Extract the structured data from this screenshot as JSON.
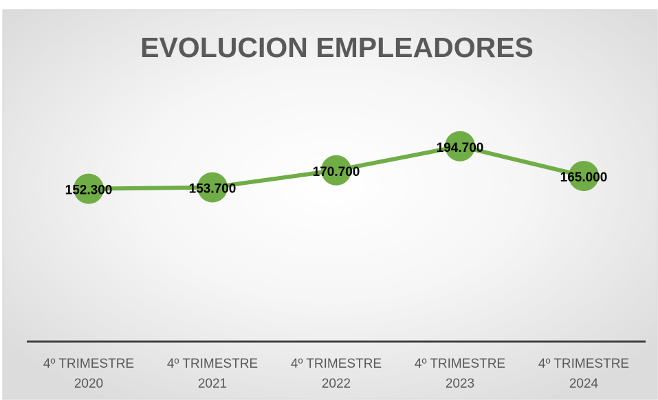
{
  "chart_data": {
    "type": "line",
    "title": "EVOLUCION EMPLEADORES",
    "categories": [
      "4º TRIMESTRE 2020",
      "4º TRIMESTRE 2021",
      "4º TRIMESTRE 2022",
      "4º TRIMESTRE 2023",
      "4º TRIMESTRE 2024"
    ],
    "series": [
      {
        "name": "EMPLEADORES",
        "color": "#70ad47",
        "values": [
          152300,
          153700,
          170700,
          194700,
          165000
        ],
        "value_labels": [
          "152.300",
          "153.700",
          "170.700",
          "194.700",
          "165.000"
        ]
      }
    ],
    "ylim": [
      0,
      250000
    ]
  }
}
